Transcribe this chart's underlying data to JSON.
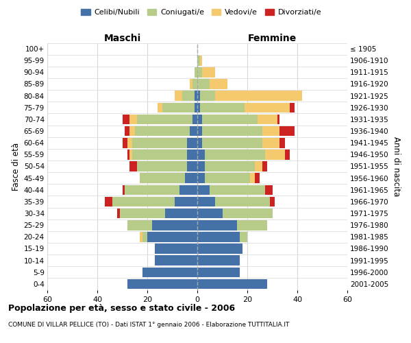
{
  "age_groups": [
    "0-4",
    "5-9",
    "10-14",
    "15-19",
    "20-24",
    "25-29",
    "30-34",
    "35-39",
    "40-44",
    "45-49",
    "50-54",
    "55-59",
    "60-64",
    "65-69",
    "70-74",
    "75-79",
    "80-84",
    "85-89",
    "90-94",
    "95-99",
    "100+"
  ],
  "birth_years": [
    "2001-2005",
    "1996-2000",
    "1991-1995",
    "1986-1990",
    "1981-1985",
    "1976-1980",
    "1971-1975",
    "1966-1970",
    "1961-1965",
    "1956-1960",
    "1951-1955",
    "1946-1950",
    "1941-1945",
    "1936-1940",
    "1931-1935",
    "1926-1930",
    "1921-1925",
    "1916-1920",
    "1911-1915",
    "1906-1910",
    "≤ 1905"
  ],
  "colors": {
    "celibi": "#4472a8",
    "coniugati": "#b8cc8a",
    "vedovi": "#f5c96e",
    "divorziati": "#cc2222"
  },
  "males": {
    "celibi": [
      28,
      22,
      17,
      17,
      20,
      18,
      13,
      9,
      7,
      5,
      4,
      4,
      4,
      3,
      2,
      1,
      1,
      0,
      0,
      0,
      0
    ],
    "coniugati": [
      0,
      0,
      0,
      0,
      2,
      10,
      18,
      25,
      22,
      18,
      20,
      22,
      22,
      22,
      22,
      13,
      5,
      2,
      1,
      0,
      0
    ],
    "vedovi": [
      0,
      0,
      0,
      0,
      1,
      0,
      0,
      0,
      0,
      0,
      0,
      1,
      2,
      2,
      3,
      2,
      3,
      1,
      0,
      0,
      0
    ],
    "divorziati": [
      0,
      0,
      0,
      0,
      0,
      0,
      1,
      3,
      1,
      0,
      3,
      1,
      2,
      2,
      3,
      0,
      0,
      0,
      0,
      0,
      0
    ]
  },
  "females": {
    "celibi": [
      28,
      17,
      17,
      18,
      17,
      16,
      10,
      7,
      5,
      3,
      3,
      3,
      2,
      2,
      2,
      1,
      1,
      0,
      0,
      0,
      0
    ],
    "coniugati": [
      0,
      0,
      0,
      0,
      3,
      12,
      20,
      22,
      22,
      18,
      20,
      24,
      24,
      24,
      22,
      18,
      6,
      5,
      2,
      1,
      0
    ],
    "vedovi": [
      0,
      0,
      0,
      0,
      0,
      0,
      0,
      0,
      0,
      2,
      3,
      8,
      7,
      7,
      8,
      18,
      35,
      7,
      5,
      1,
      0
    ],
    "divorziati": [
      0,
      0,
      0,
      0,
      0,
      0,
      0,
      2,
      3,
      2,
      2,
      2,
      2,
      6,
      1,
      2,
      0,
      0,
      0,
      0,
      0
    ]
  },
  "xlim": 60,
  "xticks": [
    -60,
    -40,
    -20,
    0,
    20,
    40,
    60
  ],
  "title": "Popolazione per età, sesso e stato civile - 2006",
  "subtitle": "COMUNE DI VILLAR PELLICE (TO) - Dati ISTAT 1° gennaio 2006 - Elaborazione TUTTITALIA.IT",
  "ylabel_left": "Fasce di età",
  "ylabel_right": "Anni di nascita",
  "xlabel_left": "Maschi",
  "xlabel_right": "Femmine",
  "bg_color": "#ffffff",
  "grid_color": "#d8d8d8",
  "bar_height": 0.85
}
